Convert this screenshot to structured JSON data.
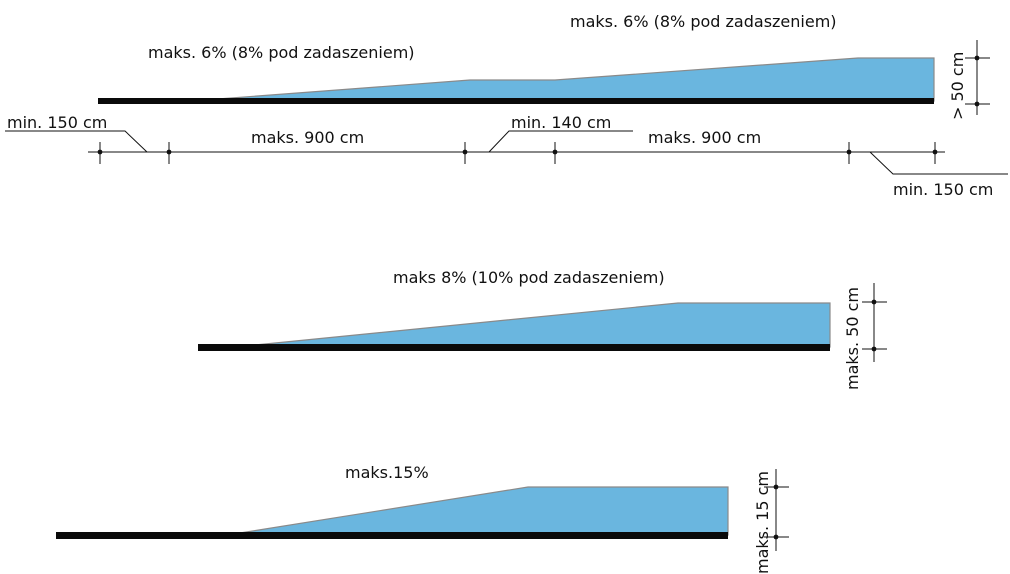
{
  "colors": {
    "ramp_fill": "#6ab6df",
    "floor": "#0a0a0a",
    "line": "#111111"
  },
  "ramp_two_run": {
    "slope_label_first": "maks. 6% (8% pod zadaszeniem)",
    "slope_label_second": "maks. 6% (8% pod zadaszeniem)",
    "height_label": "> 50 cm",
    "dim_landing_start": "min. 150 cm",
    "dim_run_first": "maks. 900 cm",
    "dim_landing_middle": "min. 140 cm",
    "dim_run_second": "maks. 900 cm",
    "dim_landing_end": "min. 150 cm"
  },
  "ramp_single_run": {
    "slope_label": "maks 8% (10% pod zadaszeniem)",
    "height_label": "maks. 50 cm"
  },
  "ramp_short": {
    "slope_label": "maks.15%",
    "height_label": "maks. 15 cm"
  }
}
